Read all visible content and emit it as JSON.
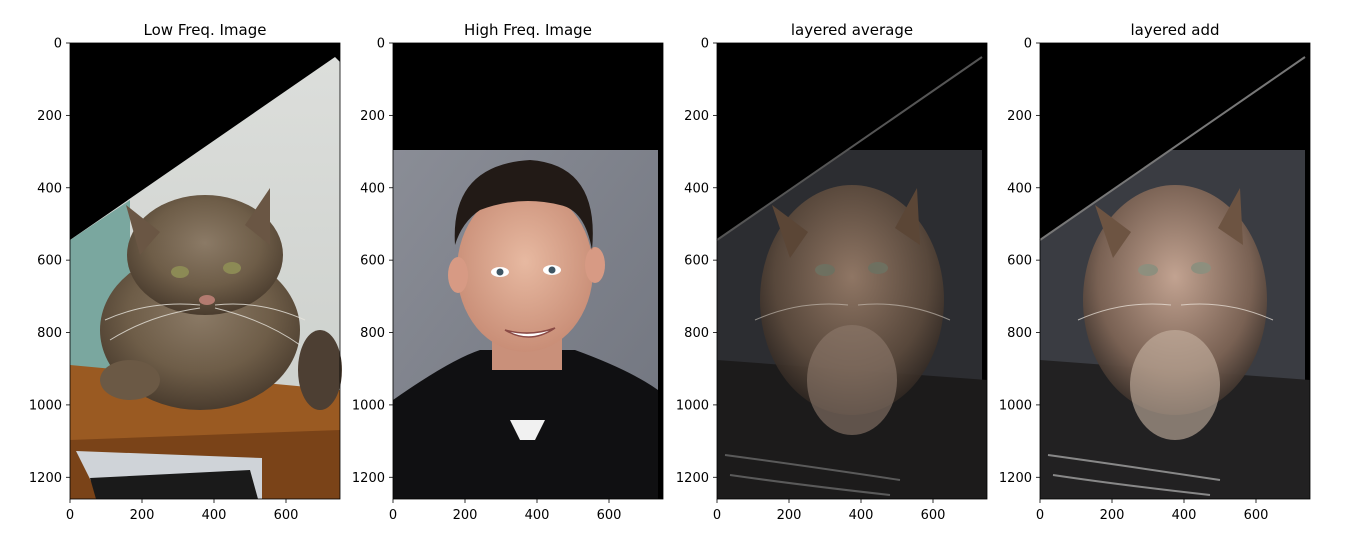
{
  "figure": {
    "background": "#ffffff"
  },
  "chart_data": [
    {
      "type": "image",
      "title": "Low Freq. Image",
      "xlim": [
        0,
        750
      ],
      "ylim": [
        1260,
        0
      ],
      "xticks": [
        0,
        200,
        400,
        600
      ],
      "yticks": [
        0,
        200,
        400,
        600,
        800,
        1000,
        1200
      ],
      "content": "tabby cat photograph, rotated, black upper-left corner"
    },
    {
      "type": "image",
      "title": "High Freq. Image",
      "xlim": [
        0,
        750
      ],
      "ylim": [
        1260,
        0
      ],
      "xticks": [
        0,
        200,
        400,
        600
      ],
      "yticks": [
        0,
        200,
        400,
        600,
        800,
        1000,
        1200
      ],
      "content": "portrait of a smiling man in black shirt, black band at top"
    },
    {
      "type": "image",
      "title": "layered average",
      "xlim": [
        0,
        750
      ],
      "ylim": [
        1260,
        0
      ],
      "xticks": [
        0,
        200,
        400,
        600
      ],
      "yticks": [
        0,
        200,
        400,
        600,
        800,
        1000,
        1200
      ],
      "content": "dim hybrid of cat and man"
    },
    {
      "type": "image",
      "title": "layered add",
      "xlim": [
        0,
        750
      ],
      "ylim": [
        1260,
        0
      ],
      "xticks": [
        0,
        200,
        400,
        600
      ],
      "yticks": [
        0,
        200,
        400,
        600,
        800,
        1000,
        1200
      ],
      "content": "brighter hybrid of cat and man"
    }
  ]
}
